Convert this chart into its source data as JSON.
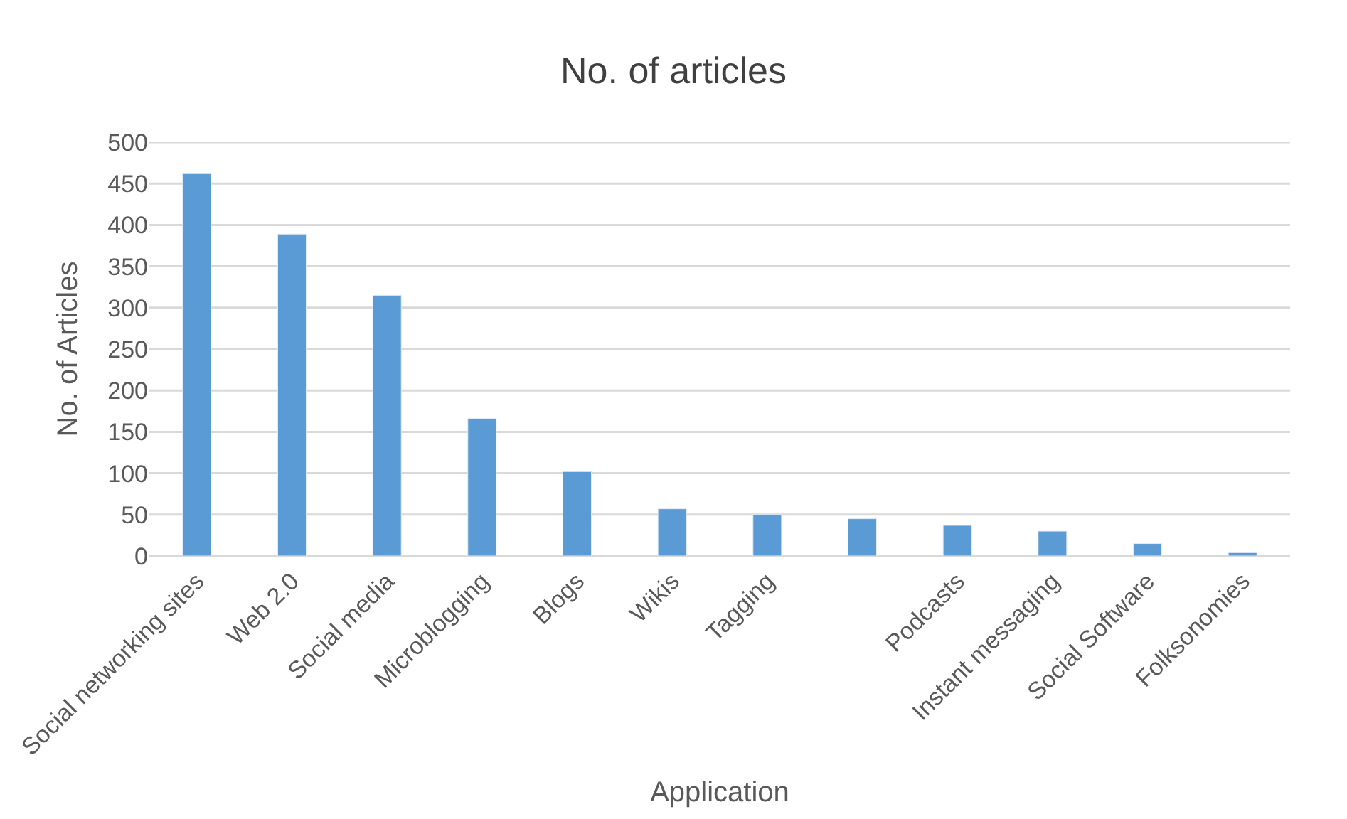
{
  "chart_data": {
    "type": "bar",
    "title": "No. of articles",
    "xlabel": "Application",
    "ylabel": "No. of Articles",
    "categories": [
      "Social networking sites",
      "Web 2.0",
      "Social media",
      "Microblogging",
      "Blogs",
      "Wikis",
      "Tagging",
      null,
      "Podcasts",
      "Instant messaging",
      "Social Software",
      "Folksonomies"
    ],
    "values": [
      462,
      389,
      315,
      166,
      102,
      57,
      50,
      45,
      37,
      30,
      15,
      4
    ],
    "color": "#5b9bd5",
    "ylim": [
      0,
      500
    ],
    "yticks": [
      0,
      50,
      100,
      150,
      200,
      250,
      300,
      350,
      400,
      450,
      500
    ],
    "grid": "y"
  }
}
